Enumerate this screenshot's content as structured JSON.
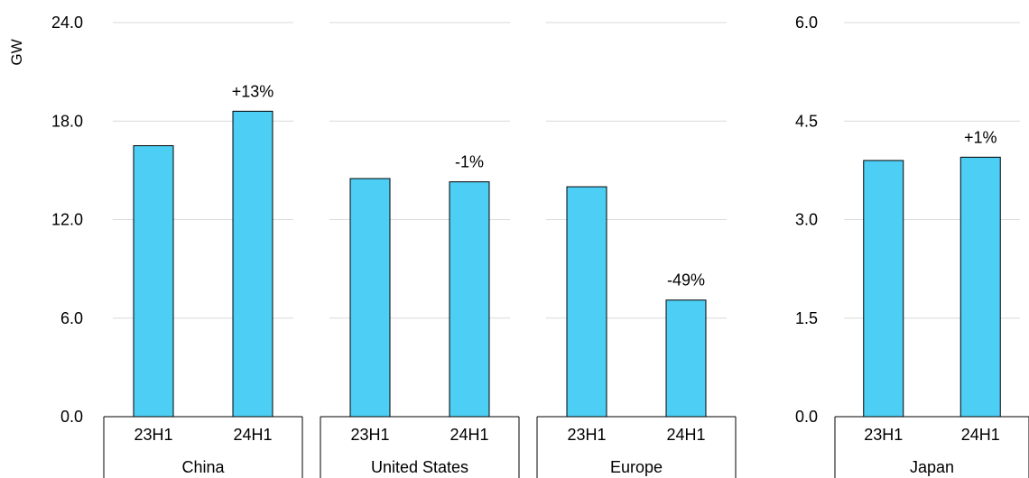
{
  "chart_data": {
    "type": "bar",
    "ylabel": "GW",
    "bar_color": "#4dcff5",
    "bar_stroke": "#000000",
    "grid_color": "#d9d9d9",
    "grid": true,
    "panels": [
      {
        "group": "China",
        "categories": [
          "23H1",
          "24H1"
        ],
        "values": [
          16.5,
          18.6
        ],
        "annotation": "+13%",
        "axis": "left",
        "ylim": [
          0,
          24
        ],
        "ticks": [
          "0.0",
          "6.0",
          "12.0",
          "18.0",
          "24.0"
        ]
      },
      {
        "group": "United States",
        "categories": [
          "23H1",
          "24H1"
        ],
        "values": [
          14.5,
          14.3
        ],
        "annotation": "-1%",
        "axis": "left",
        "ylim": [
          0,
          24
        ]
      },
      {
        "group": "Europe",
        "categories": [
          "23H1",
          "24H1"
        ],
        "values": [
          14.0,
          7.1
        ],
        "annotation": "-49%",
        "axis": "left",
        "ylim": [
          0,
          24
        ]
      },
      {
        "group": "Japan",
        "categories": [
          "23H1",
          "24H1"
        ],
        "values": [
          3.9,
          3.95
        ],
        "annotation": "+1%",
        "axis": "right",
        "ylim": [
          0,
          6
        ],
        "ticks": [
          "0.0",
          "1.5",
          "3.0",
          "4.5",
          "6.0"
        ]
      }
    ]
  }
}
